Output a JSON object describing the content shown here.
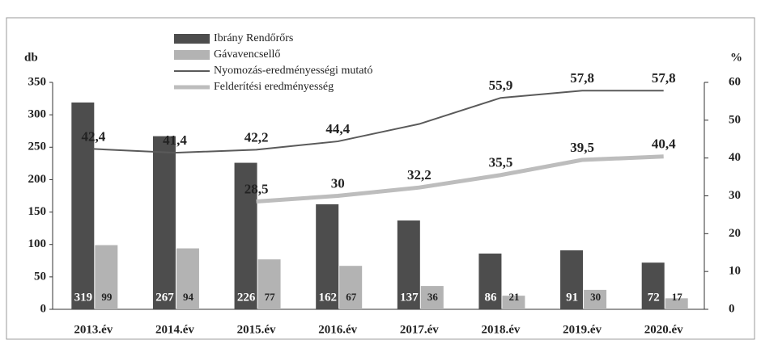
{
  "chart_data": {
    "type": "bar",
    "categories": [
      "2013.év",
      "2014.év",
      "2015.év",
      "2016.év",
      "2017.év",
      "2018.év",
      "2019.év",
      "2020.év"
    ],
    "ylabel": "db",
    "y2label": "%",
    "ylim": [
      0,
      350
    ],
    "yticks": [
      0,
      50,
      100,
      150,
      200,
      250,
      300,
      350
    ],
    "y2lim": [
      0,
      60
    ],
    "y2ticks": [
      0,
      10,
      20,
      30,
      40,
      50,
      60
    ],
    "series": [
      {
        "name": "Ibrány Rendőrőrs",
        "type": "bar",
        "color": "#4d4d4d",
        "values": [
          319,
          267,
          226,
          162,
          137,
          86,
          91,
          72
        ]
      },
      {
        "name": "Gávavencsellő",
        "type": "bar",
        "color": "#b3b3b3",
        "values": [
          99,
          94,
          77,
          67,
          36,
          21,
          30,
          17
        ]
      },
      {
        "name": "Nyomozás-eredményességi mutató",
        "type": "line",
        "axis": "y2",
        "color": "#5a5a5a",
        "values": [
          42.4,
          41.4,
          42.2,
          44.4,
          49,
          55.9,
          57.8,
          57.8
        ],
        "value_labels": [
          "42,4",
          "41,4",
          "42,2",
          "44,4",
          null,
          "55,9",
          "57,8",
          "57,8"
        ]
      },
      {
        "name": "Felderítési eredményesség",
        "type": "line",
        "axis": "y2",
        "color": "#bdbdbd",
        "values": [
          null,
          null,
          28.5,
          30,
          32.2,
          35.5,
          39.5,
          40.4
        ],
        "value_labels": [
          null,
          null,
          "28,5",
          "30",
          "32,2",
          "35,5",
          "39,5",
          "40,4"
        ]
      }
    ]
  }
}
